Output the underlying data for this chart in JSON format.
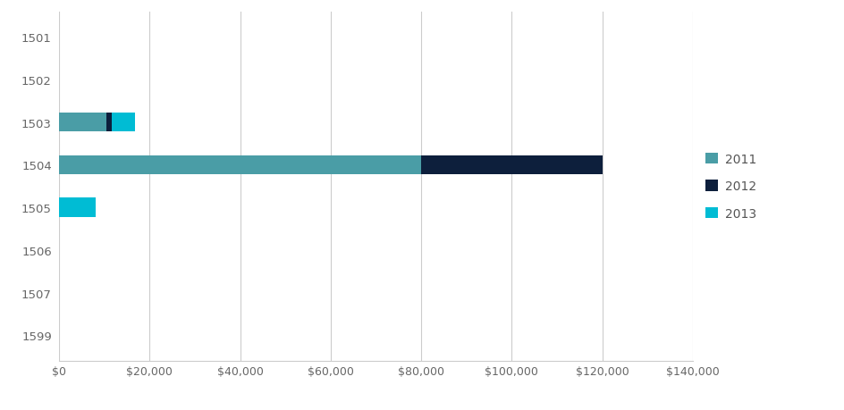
{
  "categories": [
    "1501",
    "1502",
    "1503",
    "1504",
    "1505",
    "1506",
    "1507",
    "1599"
  ],
  "series": {
    "2011": [
      0,
      0,
      10500,
      80000,
      0,
      0,
      0,
      0
    ],
    "2012": [
      0,
      0,
      1200,
      40000,
      0,
      0,
      0,
      0
    ],
    "2013": [
      0,
      0,
      5000,
      0,
      8000,
      0,
      0,
      0
    ]
  },
  "colors": {
    "2011": "#4a9da6",
    "2012": "#0d1f3c",
    "2013": "#00bcd4"
  },
  "xlim": [
    0,
    140000
  ],
  "xticks": [
    0,
    20000,
    40000,
    60000,
    80000,
    100000,
    120000,
    140000
  ],
  "legend_labels": [
    "2011",
    "2012",
    "2013"
  ],
  "background_color": "#ffffff",
  "grid_color": "#cccccc",
  "bar_height": 0.45,
  "figwidth": 9.45,
  "figheight": 4.6
}
